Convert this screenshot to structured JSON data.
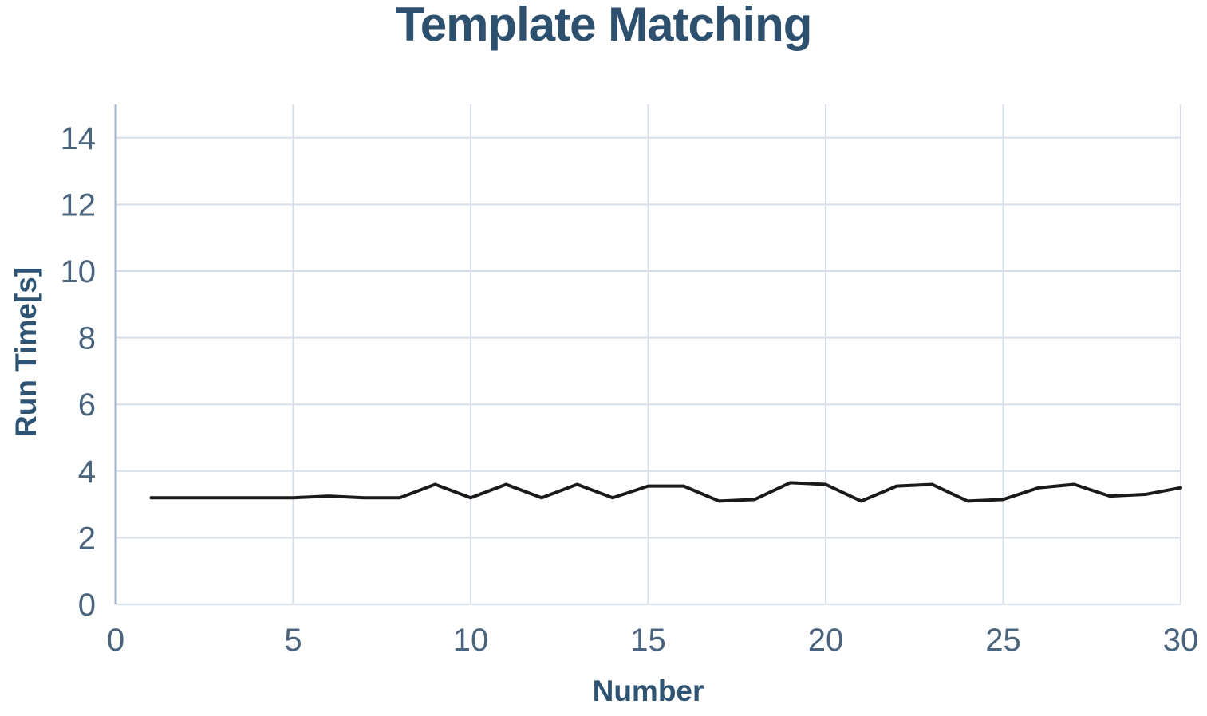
{
  "chart_data": {
    "type": "line",
    "title": "Template Matching",
    "xlabel": "Number",
    "ylabel": "Run Time[s]",
    "x": [
      1,
      2,
      3,
      4,
      5,
      6,
      7,
      8,
      9,
      10,
      11,
      12,
      13,
      14,
      15,
      16,
      17,
      18,
      19,
      20,
      21,
      22,
      23,
      24,
      25,
      26,
      27,
      28,
      29,
      30
    ],
    "series": [
      {
        "name": "Run Time",
        "values": [
          3.2,
          3.2,
          3.2,
          3.2,
          3.2,
          3.25,
          3.2,
          3.2,
          3.6,
          3.2,
          3.6,
          3.2,
          3.6,
          3.2,
          3.55,
          3.55,
          3.1,
          3.15,
          3.65,
          3.6,
          3.1,
          3.55,
          3.6,
          3.1,
          3.15,
          3.5,
          3.6,
          3.25,
          3.3,
          3.5
        ]
      }
    ],
    "xlim": [
      0,
      30
    ],
    "ylim": [
      0,
      15
    ],
    "x_ticks": [
      0,
      5,
      10,
      15,
      20,
      25,
      30
    ],
    "y_ticks": [
      0,
      2,
      4,
      6,
      8,
      10,
      12,
      14
    ],
    "grid": true,
    "legend_position": "none",
    "colors": {
      "title": "#2e506f",
      "axis_title": "#2e5373",
      "tick_label": "#4a647e",
      "gridline": "#d6dfe9",
      "y_axis_line": "#a3b8cd",
      "x_axis_line": "#dfe6ee",
      "line": "#1a1a1a"
    }
  }
}
